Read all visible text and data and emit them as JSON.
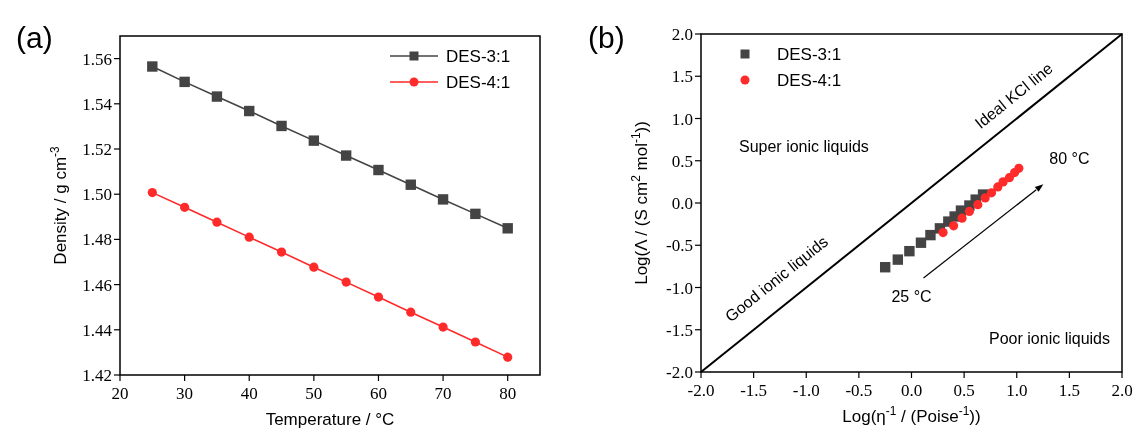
{
  "chart_data": [
    {
      "type": "line",
      "title": "(a)",
      "xlabel": "Temperature / °C",
      "ylabel": "Density / g cm$^{-3}$",
      "x": [
        25,
        30,
        35,
        40,
        45,
        50,
        55,
        60,
        65,
        70,
        75,
        80
      ],
      "xlim": [
        20,
        85
      ],
      "xticks": [
        20,
        30,
        40,
        50,
        60,
        70,
        80
      ],
      "ylim": [
        1.42,
        1.57
      ],
      "yticks": [
        {
          "value": 1.42,
          "label": "1.42"
        },
        {
          "value": 1.44,
          "label": "1.44"
        },
        {
          "value": 1.46,
          "label": "1.46"
        },
        {
          "value": 1.48,
          "label": "1.48"
        },
        {
          "value": 1.5,
          "label": "1.50"
        },
        {
          "value": 1.52,
          "label": "1.52"
        },
        {
          "value": 1.54,
          "label": "1.54"
        },
        {
          "value": 1.56,
          "label": "1.56"
        }
      ],
      "grid": false,
      "legend": "top right",
      "series": [
        {
          "name": "DES-3:1",
          "color": "#444444",
          "marker": "square",
          "values": [
            1.5565,
            1.5497,
            1.5432,
            1.5368,
            1.5302,
            1.5237,
            1.5171,
            1.5107,
            1.5042,
            1.4977,
            1.4913,
            1.4849
          ]
        },
        {
          "name": "DES-4:1",
          "color": "#ff2a2a",
          "marker": "circle",
          "values": [
            1.5007,
            1.4942,
            1.4876,
            1.481,
            1.4744,
            1.4677,
            1.4611,
            1.4545,
            1.4478,
            1.4412,
            1.4346,
            1.4279
          ]
        }
      ]
    },
    {
      "type": "scatter",
      "title": "(b)",
      "xlabel": "Log(η$^{-1}$ / (Poise$^{-1}$))",
      "ylabel": "Log(Λ / (S cm$^{2}$ mol$^{-1}$))",
      "xlim": [
        -2,
        2
      ],
      "xticks": [
        {
          "value": -2,
          "label": "-2.0"
        },
        {
          "value": -1.5,
          "label": "-1.5"
        },
        {
          "value": -1,
          "label": "-1.0"
        },
        {
          "value": -0.5,
          "label": "-0.5"
        },
        {
          "value": 0,
          "label": "0.0"
        },
        {
          "value": 0.5,
          "label": "0.5"
        },
        {
          "value": 1,
          "label": "1.0"
        },
        {
          "value": 1.5,
          "label": "1.5"
        },
        {
          "value": 2,
          "label": "2.0"
        }
      ],
      "ylim": [
        -2,
        2
      ],
      "yticks": [
        {
          "value": -2,
          "label": "-2.0"
        },
        {
          "value": -1.5,
          "label": "-1.5"
        },
        {
          "value": -1,
          "label": "-1.0"
        },
        {
          "value": -0.5,
          "label": "-0.5"
        },
        {
          "value": 0,
          "label": "0.0"
        },
        {
          "value": 0.5,
          "label": "0.5"
        },
        {
          "value": 1,
          "label": "1.0"
        },
        {
          "value": 1.5,
          "label": "1.5"
        },
        {
          "value": 2,
          "label": "2.0"
        }
      ],
      "grid": false,
      "legend": "top left",
      "annotations": [
        "Super ionic liquids",
        "Good ionic liquids",
        "Poor ionic liquids",
        "25 °C",
        "80 °C"
      ],
      "series": [
        {
          "name": "DES-3:1",
          "color": "#444444",
          "marker": "square",
          "x": [
            -0.25,
            -0.13,
            -0.02,
            0.09,
            0.18,
            0.27,
            0.35,
            0.41,
            0.47,
            0.55,
            0.61,
            0.68
          ],
          "values": [
            -0.76,
            -0.67,
            -0.57,
            -0.47,
            -0.38,
            -0.3,
            -0.22,
            -0.16,
            -0.09,
            -0.03,
            0.04,
            0.1
          ]
        },
        {
          "name": "DES-4:1",
          "color": "#ff2a2a",
          "marker": "circle",
          "x": [
            0.3,
            0.4,
            0.48,
            0.55,
            0.63,
            0.7,
            0.76,
            0.82,
            0.87,
            0.93,
            0.98,
            1.02
          ],
          "values": [
            -0.35,
            -0.27,
            -0.18,
            -0.1,
            -0.02,
            0.06,
            0.12,
            0.19,
            0.25,
            0.3,
            0.36,
            0.41
          ]
        },
        {
          "name": "Ideal KCl line",
          "type": "line",
          "color": "#000000",
          "marker": "none",
          "x": [
            -2,
            2
          ],
          "values": [
            -2,
            2
          ]
        }
      ]
    }
  ]
}
